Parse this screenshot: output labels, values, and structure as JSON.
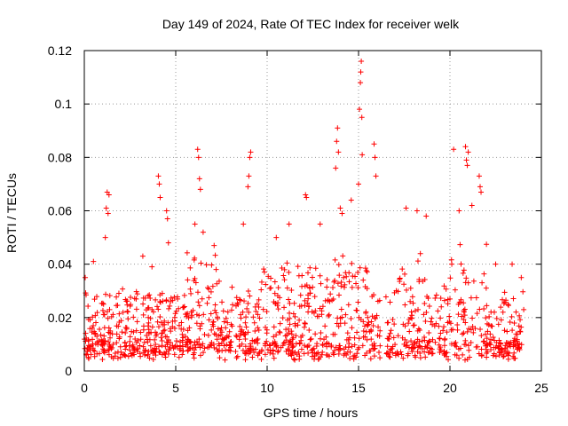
{
  "chart_data": {
    "type": "scatter",
    "title": "Day 149 of 2024, Rate Of TEC Index for receiver welk",
    "xlabel": "GPS time / hours",
    "ylabel": "ROTI / TECUs",
    "xlim": [
      0,
      25
    ],
    "ylim": [
      0,
      0.12
    ],
    "xticks": [
      0,
      5,
      10,
      15,
      20,
      25
    ],
    "xtick_labels": [
      "0",
      "5",
      "10",
      "15",
      "20",
      "25"
    ],
    "yticks": [
      0,
      0.02,
      0.04,
      0.06,
      0.08,
      0.1,
      0.12
    ],
    "ytick_labels": [
      "0",
      "0.02",
      "0.04",
      "0.06",
      "0.08",
      "0.1",
      "0.12"
    ],
    "grid": true,
    "marker": "+",
    "color": "#ff0000",
    "data_gap_hours": [
      16.2,
      16.5
    ],
    "series": [
      {
        "name": "ROTI",
        "notable_points": [
          {
            "x": 0.05,
            "y": 0.035
          },
          {
            "x": 0.5,
            "y": 0.041
          },
          {
            "x": 1.2,
            "y": 0.061
          },
          {
            "x": 1.25,
            "y": 0.067
          },
          {
            "x": 1.3,
            "y": 0.059
          },
          {
            "x": 1.35,
            "y": 0.066
          },
          {
            "x": 1.15,
            "y": 0.05
          },
          {
            "x": 3.2,
            "y": 0.043
          },
          {
            "x": 3.7,
            "y": 0.039
          },
          {
            "x": 4.05,
            "y": 0.073
          },
          {
            "x": 4.1,
            "y": 0.07
          },
          {
            "x": 4.15,
            "y": 0.065
          },
          {
            "x": 4.5,
            "y": 0.06
          },
          {
            "x": 4.55,
            "y": 0.057
          },
          {
            "x": 4.6,
            "y": 0.048
          },
          {
            "x": 6.05,
            "y": 0.055
          },
          {
            "x": 6.2,
            "y": 0.083
          },
          {
            "x": 6.25,
            "y": 0.08
          },
          {
            "x": 6.3,
            "y": 0.072
          },
          {
            "x": 6.35,
            "y": 0.068
          },
          {
            "x": 6.5,
            "y": 0.052
          },
          {
            "x": 7.1,
            "y": 0.047
          },
          {
            "x": 8.7,
            "y": 0.055
          },
          {
            "x": 8.95,
            "y": 0.069
          },
          {
            "x": 9.0,
            "y": 0.073
          },
          {
            "x": 9.05,
            "y": 0.08
          },
          {
            "x": 9.1,
            "y": 0.082
          },
          {
            "x": 10.5,
            "y": 0.05
          },
          {
            "x": 11.2,
            "y": 0.055
          },
          {
            "x": 12.1,
            "y": 0.066
          },
          {
            "x": 12.15,
            "y": 0.065
          },
          {
            "x": 12.9,
            "y": 0.055
          },
          {
            "x": 13.75,
            "y": 0.076
          },
          {
            "x": 13.8,
            "y": 0.086
          },
          {
            "x": 13.85,
            "y": 0.091
          },
          {
            "x": 13.9,
            "y": 0.082
          },
          {
            "x": 14.0,
            "y": 0.061
          },
          {
            "x": 14.1,
            "y": 0.059
          },
          {
            "x": 14.6,
            "y": 0.064
          },
          {
            "x": 15.0,
            "y": 0.07
          },
          {
            "x": 15.05,
            "y": 0.098
          },
          {
            "x": 15.1,
            "y": 0.108
          },
          {
            "x": 15.12,
            "y": 0.112
          },
          {
            "x": 15.15,
            "y": 0.116
          },
          {
            "x": 15.18,
            "y": 0.095
          },
          {
            "x": 15.2,
            "y": 0.081
          },
          {
            "x": 15.85,
            "y": 0.085
          },
          {
            "x": 15.9,
            "y": 0.08
          },
          {
            "x": 15.95,
            "y": 0.073
          },
          {
            "x": 17.6,
            "y": 0.061
          },
          {
            "x": 18.2,
            "y": 0.06
          },
          {
            "x": 18.7,
            "y": 0.058
          },
          {
            "x": 20.1,
            "y": 0.04
          },
          {
            "x": 20.2,
            "y": 0.083
          },
          {
            "x": 20.5,
            "y": 0.06
          },
          {
            "x": 20.85,
            "y": 0.084
          },
          {
            "x": 20.9,
            "y": 0.079
          },
          {
            "x": 20.95,
            "y": 0.077
          },
          {
            "x": 21.0,
            "y": 0.082
          },
          {
            "x": 21.2,
            "y": 0.062
          },
          {
            "x": 21.6,
            "y": 0.073
          },
          {
            "x": 21.65,
            "y": 0.069
          },
          {
            "x": 21.7,
            "y": 0.067
          },
          {
            "x": 22.5,
            "y": 0.04
          },
          {
            "x": 23.4,
            "y": 0.04
          },
          {
            "x": 23.9,
            "y": 0.035
          }
        ]
      }
    ]
  }
}
